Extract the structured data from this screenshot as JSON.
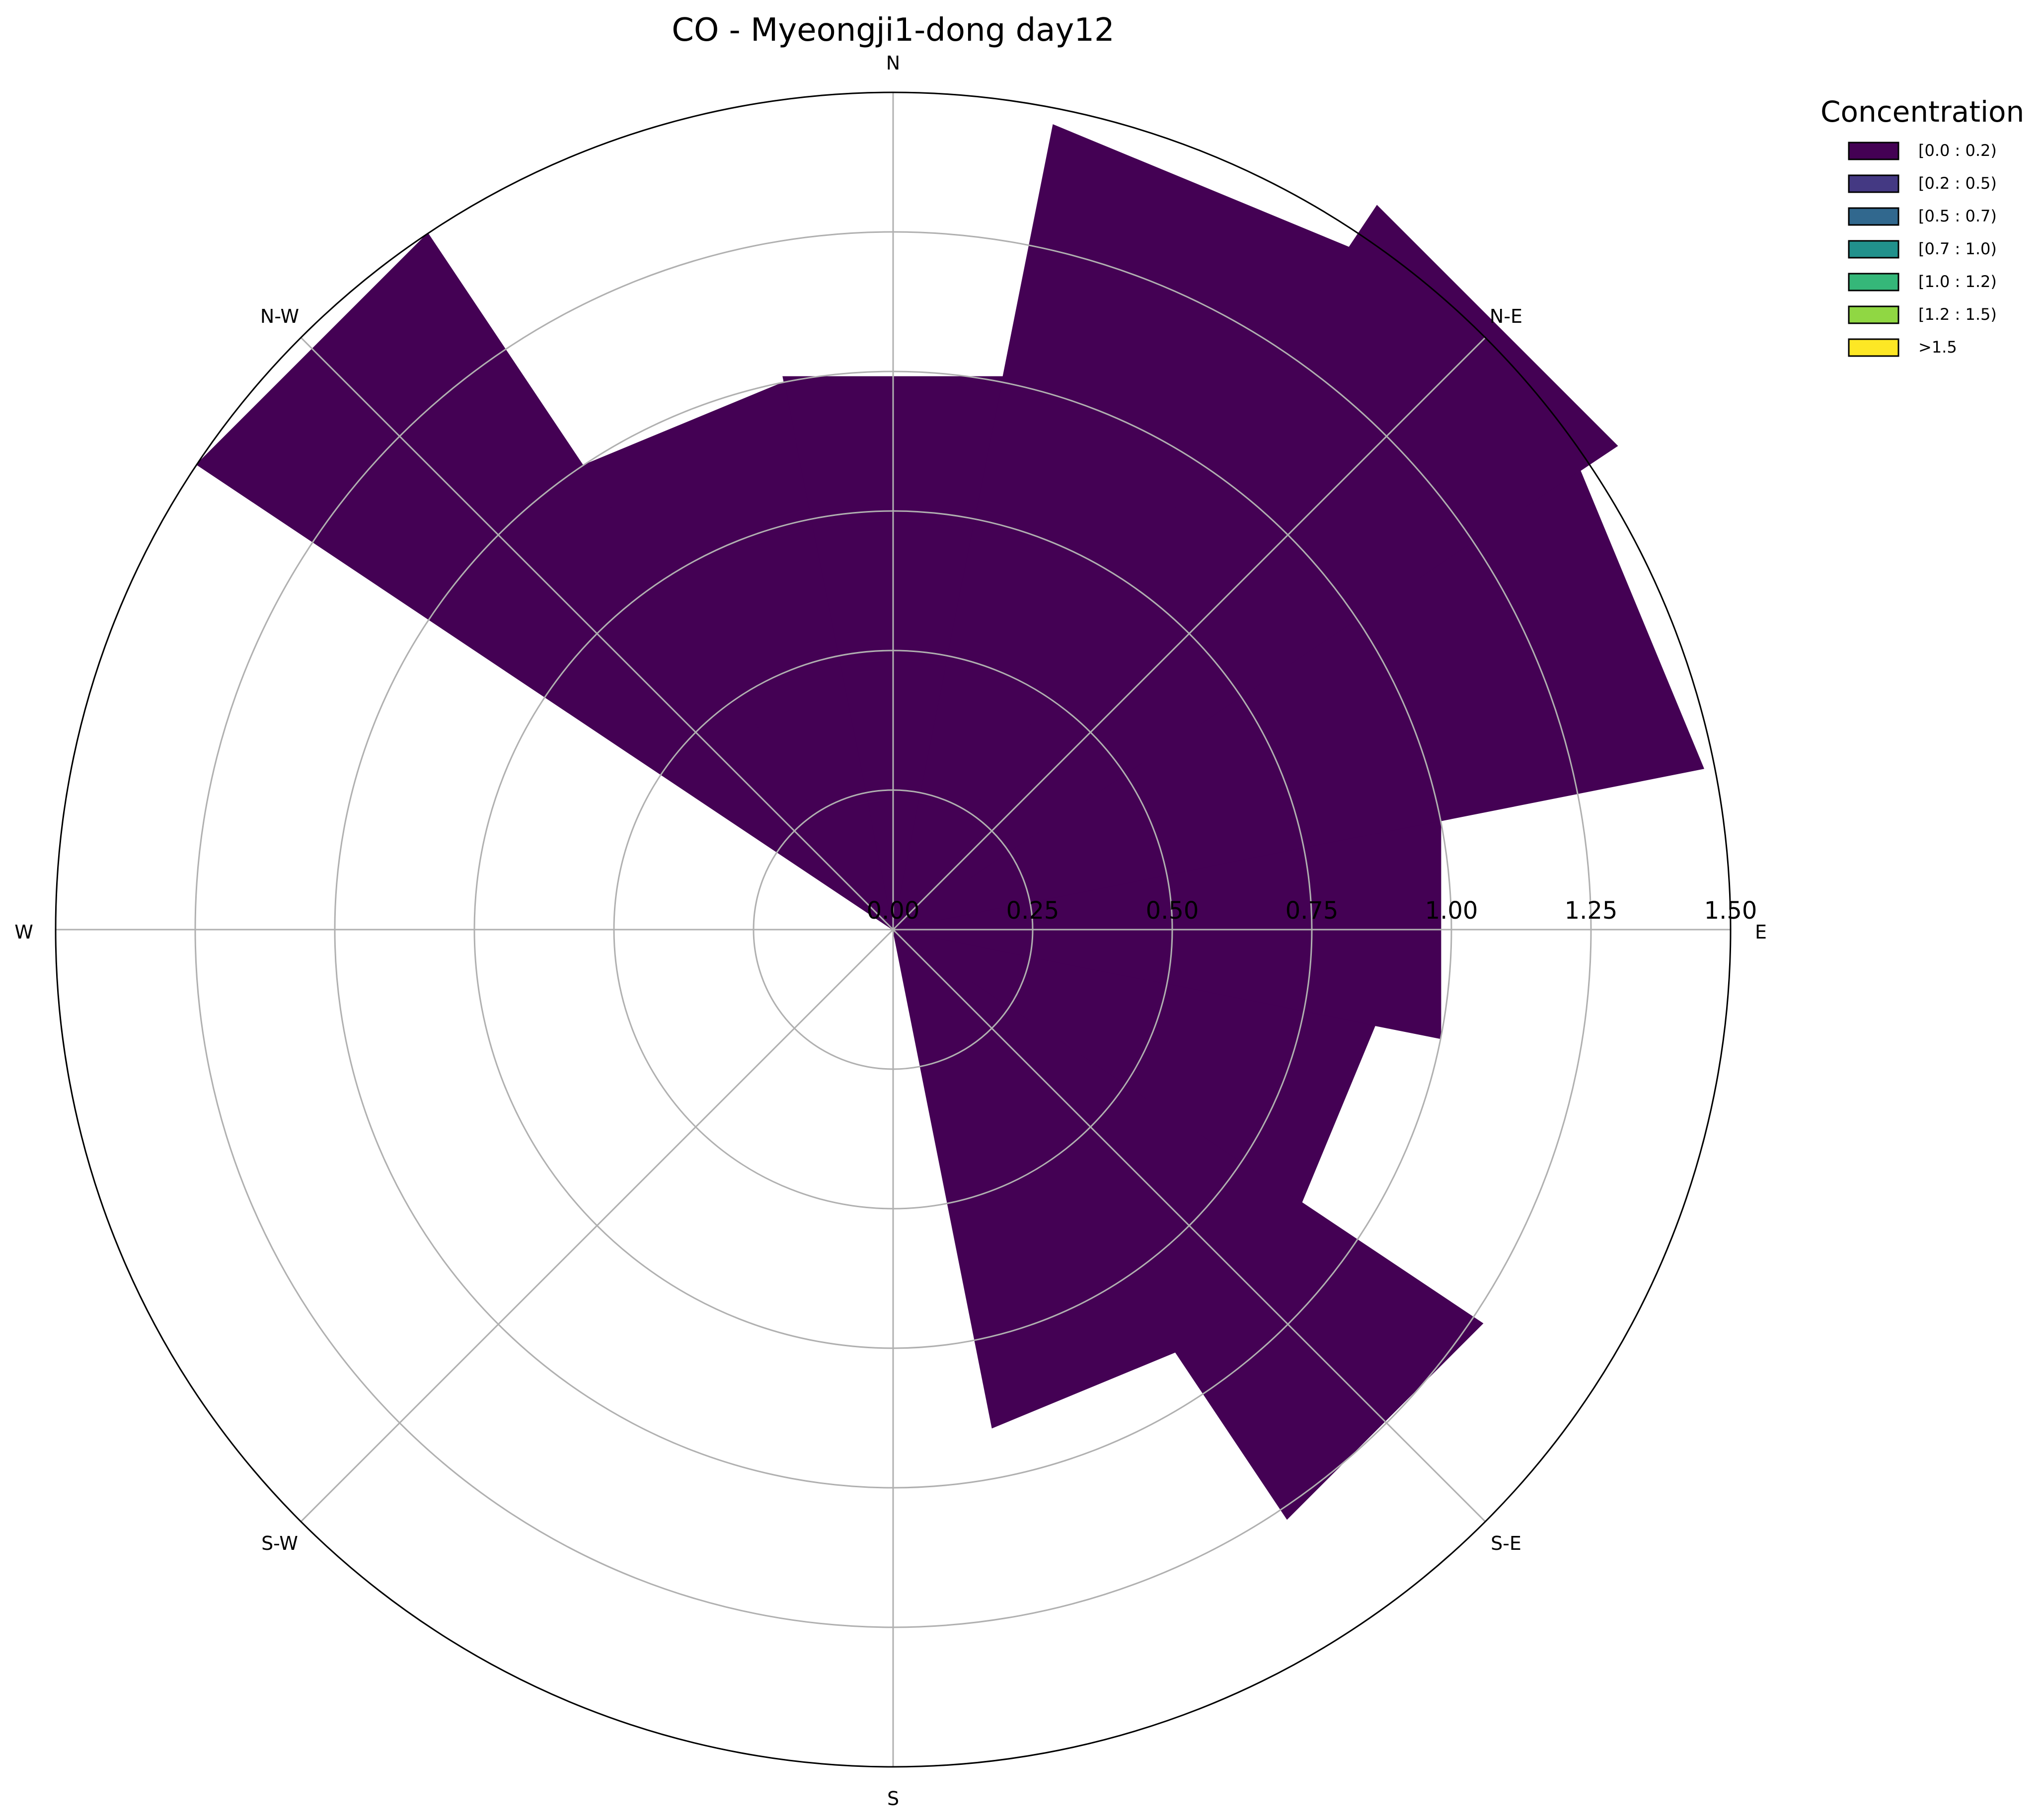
{
  "chart_data": {
    "type": "windrose",
    "title": "CO - Myeongji1-dong day12",
    "directions": [
      "N",
      "N-E",
      "E",
      "S-E",
      "S",
      "S-W",
      "W",
      "N-W"
    ],
    "radial_ticks": [
      "0.00",
      "0.25",
      "0.50",
      "0.75",
      "1.00",
      "1.25",
      "1.50"
    ],
    "radial_tick_values": [
      0,
      0.25,
      0.5,
      0.75,
      1.0,
      1.25,
      1.5
    ],
    "rlim": [
      0,
      1.5
    ],
    "sector_angles_deg": [
      90,
      67.5,
      45,
      22.5,
      0,
      -22.5,
      -45,
      -67.5,
      -90,
      112.5,
      135,
      157.5
    ],
    "sector_values": [
      1.01,
      1.47,
      1.56,
      1.48,
      1.0,
      0.88,
      1.27,
      0.91,
      0.0,
      1.0,
      1.5,
      0.0
    ],
    "sector_width_deg": 22.5,
    "series": [
      {
        "name": "[0.0 : 0.2)",
        "color": "#440154"
      }
    ],
    "legend": {
      "title": "Concentration",
      "placement": "top-right",
      "entries": [
        {
          "label": "[0.0 : 0.2)",
          "color": "#440154"
        },
        {
          "label": "[0.2 : 0.5)",
          "color": "#443983"
        },
        {
          "label": "[0.5 : 0.7)",
          "color": "#31688e"
        },
        {
          "label": "[0.7 : 1.0)",
          "color": "#21918c"
        },
        {
          "label": "[1.0 : 1.2)",
          "color": "#35b779"
        },
        {
          "label": "[1.2 : 1.5)",
          "color": "#90d743"
        },
        {
          "label": ">1.5",
          "color": "#fde725"
        }
      ]
    },
    "grid": true
  }
}
